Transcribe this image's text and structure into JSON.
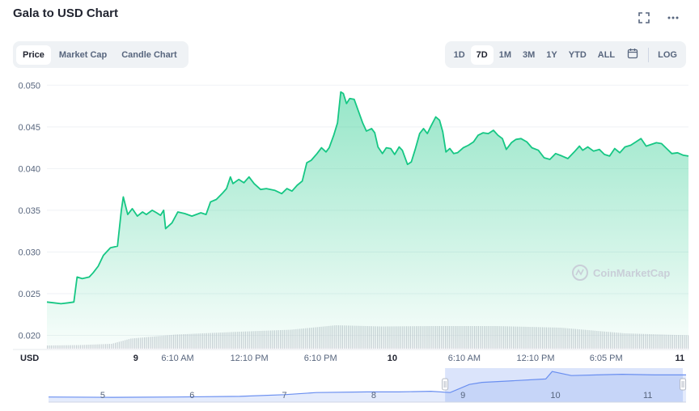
{
  "header": {
    "title": "Gala to USD Chart",
    "fullscreen_icon": "fullscreen-icon",
    "more_icon": "more-icon"
  },
  "tabs": [
    {
      "label": "Price",
      "active": true
    },
    {
      "label": "Market Cap",
      "active": false
    },
    {
      "label": "Candle Chart",
      "active": false
    }
  ],
  "ranges": [
    {
      "label": "1D",
      "active": false
    },
    {
      "label": "7D",
      "active": true
    },
    {
      "label": "1M",
      "active": false
    },
    {
      "label": "3M",
      "active": false
    },
    {
      "label": "1Y",
      "active": false
    },
    {
      "label": "YTD",
      "active": false
    },
    {
      "label": "ALL",
      "active": false
    }
  ],
  "calendar_icon": "calendar-icon",
  "log_label": "LOG",
  "watermark": "CoinMarketCap",
  "colors": {
    "line": "#16c784",
    "navigator": "#6a8ff0",
    "volume": "#c4c8d0"
  },
  "chart_data": {
    "type": "area",
    "currency_label": "USD",
    "ylim": [
      0.0185,
      0.051
    ],
    "y_ticks": [
      "0.050",
      "0.045",
      "0.040",
      "0.035",
      "0.030",
      "0.025",
      "0.020"
    ],
    "y_tick_values": [
      0.05,
      0.045,
      0.04,
      0.035,
      0.03,
      0.025,
      0.02
    ],
    "x_ticks": [
      {
        "label": "9",
        "at": 0.1385,
        "bold": true
      },
      {
        "label": "6:10 AM",
        "at": 0.2037,
        "bold": false
      },
      {
        "label": "12:10 PM",
        "at": 0.3154,
        "bold": false
      },
      {
        "label": "6:10 PM",
        "at": 0.4265,
        "bold": false
      },
      {
        "label": "10",
        "at": 0.5383,
        "bold": true
      },
      {
        "label": "6:10 AM",
        "at": 0.6506,
        "bold": false
      },
      {
        "label": "12:10 PM",
        "at": 0.7617,
        "bold": false
      },
      {
        "label": "6:05 PM",
        "at": 0.8716,
        "bold": false
      },
      {
        "label": "11",
        "at": 0.9865,
        "bold": true
      }
    ],
    "series": [
      {
        "points": [
          [
            0,
            0.024
          ],
          [
            0.011,
            0.0239
          ],
          [
            0.022,
            0.0238
          ],
          [
            0.033,
            0.0239
          ],
          [
            0.042,
            0.024
          ],
          [
            0.047,
            0.027
          ],
          [
            0.055,
            0.0268
          ],
          [
            0.066,
            0.027
          ],
          [
            0.072,
            0.0275
          ],
          [
            0.08,
            0.0283
          ],
          [
            0.088,
            0.0296
          ],
          [
            0.099,
            0.0305
          ],
          [
            0.11,
            0.0307
          ],
          [
            0.116,
            0.035
          ],
          [
            0.119,
            0.0366
          ],
          [
            0.126,
            0.0345
          ],
          [
            0.133,
            0.0352
          ],
          [
            0.141,
            0.0343
          ],
          [
            0.149,
            0.0348
          ],
          [
            0.155,
            0.0345
          ],
          [
            0.164,
            0.035
          ],
          [
            0.171,
            0.0347
          ],
          [
            0.177,
            0.0344
          ],
          [
            0.182,
            0.035
          ],
          [
            0.185,
            0.0328
          ],
          [
            0.195,
            0.0335
          ],
          [
            0.204,
            0.0348
          ],
          [
            0.215,
            0.0346
          ],
          [
            0.226,
            0.0343
          ],
          [
            0.24,
            0.0347
          ],
          [
            0.248,
            0.0345
          ],
          [
            0.255,
            0.036
          ],
          [
            0.264,
            0.0363
          ],
          [
            0.273,
            0.037
          ],
          [
            0.28,
            0.0376
          ],
          [
            0.286,
            0.039
          ],
          [
            0.29,
            0.0382
          ],
          [
            0.299,
            0.0387
          ],
          [
            0.307,
            0.0383
          ],
          [
            0.315,
            0.039
          ],
          [
            0.323,
            0.0382
          ],
          [
            0.333,
            0.0375
          ],
          [
            0.342,
            0.0376
          ],
          [
            0.355,
            0.0374
          ],
          [
            0.366,
            0.037
          ],
          [
            0.374,
            0.0376
          ],
          [
            0.382,
            0.0373
          ],
          [
            0.39,
            0.038
          ],
          [
            0.398,
            0.0385
          ],
          [
            0.405,
            0.0407
          ],
          [
            0.412,
            0.041
          ],
          [
            0.421,
            0.0418
          ],
          [
            0.428,
            0.0425
          ],
          [
            0.435,
            0.042
          ],
          [
            0.44,
            0.0425
          ],
          [
            0.447,
            0.044
          ],
          [
            0.453,
            0.0455
          ],
          [
            0.458,
            0.0492
          ],
          [
            0.462,
            0.049
          ],
          [
            0.467,
            0.0478
          ],
          [
            0.472,
            0.0484
          ],
          [
            0.479,
            0.0483
          ],
          [
            0.485,
            0.047
          ],
          [
            0.492,
            0.0455
          ],
          [
            0.498,
            0.0445
          ],
          [
            0.506,
            0.0448
          ],
          [
            0.511,
            0.0443
          ],
          [
            0.516,
            0.0426
          ],
          [
            0.523,
            0.0418
          ],
          [
            0.529,
            0.0425
          ],
          [
            0.536,
            0.0424
          ],
          [
            0.542,
            0.0417
          ],
          [
            0.549,
            0.0426
          ],
          [
            0.554,
            0.0422
          ],
          [
            0.562,
            0.0405
          ],
          [
            0.568,
            0.0408
          ],
          [
            0.574,
            0.0423
          ],
          [
            0.581,
            0.0442
          ],
          [
            0.587,
            0.0448
          ],
          [
            0.593,
            0.0442
          ],
          [
            0.598,
            0.045
          ],
          [
            0.606,
            0.0462
          ],
          [
            0.612,
            0.0458
          ],
          [
            0.617,
            0.0444
          ],
          [
            0.622,
            0.042
          ],
          [
            0.628,
            0.0424
          ],
          [
            0.634,
            0.0418
          ],
          [
            0.64,
            0.0419
          ],
          [
            0.649,
            0.0425
          ],
          [
            0.657,
            0.0428
          ],
          [
            0.665,
            0.0432
          ],
          [
            0.672,
            0.044
          ],
          [
            0.68,
            0.0443
          ],
          [
            0.688,
            0.0442
          ],
          [
            0.696,
            0.0446
          ],
          [
            0.703,
            0.044
          ],
          [
            0.71,
            0.0436
          ],
          [
            0.716,
            0.0423
          ],
          [
            0.724,
            0.0431
          ],
          [
            0.731,
            0.0435
          ],
          [
            0.739,
            0.0436
          ],
          [
            0.748,
            0.0432
          ],
          [
            0.756,
            0.0425
          ],
          [
            0.766,
            0.0422
          ],
          [
            0.775,
            0.0413
          ],
          [
            0.784,
            0.0411
          ],
          [
            0.793,
            0.0418
          ],
          [
            0.803,
            0.0415
          ],
          [
            0.812,
            0.0412
          ],
          [
            0.822,
            0.042
          ],
          [
            0.83,
            0.0427
          ],
          [
            0.835,
            0.0422
          ],
          [
            0.843,
            0.0426
          ],
          [
            0.852,
            0.0421
          ],
          [
            0.861,
            0.0423
          ],
          [
            0.869,
            0.0417
          ],
          [
            0.877,
            0.0415
          ],
          [
            0.885,
            0.0424
          ],
          [
            0.893,
            0.0419
          ],
          [
            0.901,
            0.0426
          ],
          [
            0.91,
            0.0428
          ],
          [
            0.918,
            0.0432
          ],
          [
            0.926,
            0.0436
          ],
          [
            0.934,
            0.0427
          ],
          [
            0.942,
            0.0429
          ],
          [
            0.95,
            0.0431
          ],
          [
            0.958,
            0.043
          ],
          [
            0.966,
            0.0424
          ],
          [
            0.974,
            0.0418
          ],
          [
            0.983,
            0.0419
          ],
          [
            0.992,
            0.0416
          ],
          [
            1.0,
            0.0415
          ]
        ]
      }
    ],
    "volume_levels": [
      [
        0,
        0.08
      ],
      [
        0.05,
        0.09
      ],
      [
        0.1,
        0.12
      ],
      [
        0.13,
        0.25
      ],
      [
        0.2,
        0.35
      ],
      [
        0.3,
        0.42
      ],
      [
        0.38,
        0.47
      ],
      [
        0.45,
        0.58
      ],
      [
        0.52,
        0.55
      ],
      [
        0.6,
        0.56
      ],
      [
        0.7,
        0.56
      ],
      [
        0.8,
        0.52
      ],
      [
        0.85,
        0.45
      ],
      [
        0.9,
        0.38
      ],
      [
        1.0,
        0.33
      ]
    ],
    "navigator": {
      "labels": [
        {
          "label": "5",
          "at": 0.085
        },
        {
          "label": "6",
          "at": 0.225
        },
        {
          "label": "7",
          "at": 0.37
        },
        {
          "label": "8",
          "at": 0.51
        },
        {
          "label": "9",
          "at": 0.65
        },
        {
          "label": "10",
          "at": 0.795
        },
        {
          "label": "11",
          "at": 0.94
        }
      ],
      "selection": [
        0.622,
        0.995
      ],
      "line": [
        [
          0,
          0.15
        ],
        [
          0.1,
          0.14
        ],
        [
          0.2,
          0.15
        ],
        [
          0.3,
          0.17
        ],
        [
          0.37,
          0.22
        ],
        [
          0.42,
          0.28
        ],
        [
          0.5,
          0.3
        ],
        [
          0.55,
          0.3
        ],
        [
          0.6,
          0.32
        ],
        [
          0.63,
          0.28
        ],
        [
          0.66,
          0.52
        ],
        [
          0.68,
          0.58
        ],
        [
          0.72,
          0.62
        ],
        [
          0.78,
          0.68
        ],
        [
          0.79,
          0.9
        ],
        [
          0.82,
          0.78
        ],
        [
          0.86,
          0.8
        ],
        [
          0.9,
          0.82
        ],
        [
          0.95,
          0.8
        ],
        [
          1.0,
          0.8
        ]
      ]
    }
  }
}
